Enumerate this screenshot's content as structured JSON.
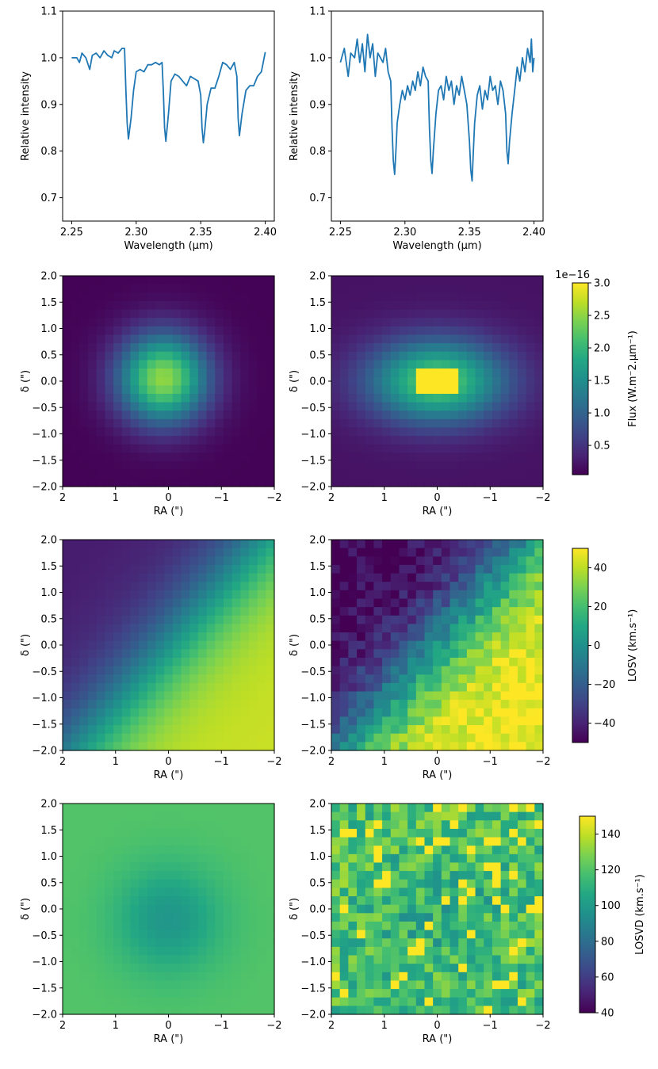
{
  "chart_data": [
    {
      "id": "spec_left",
      "type": "line",
      "panel": "r0c0",
      "xlabel": "Wavelength (μm)",
      "ylabel": "Relative intensity",
      "xlim": [
        2.243,
        2.407
      ],
      "ylim": [
        0.65,
        1.1
      ],
      "xticks": [
        2.25,
        2.3,
        2.35,
        2.4
      ],
      "xtick_labels": [
        "2.25",
        "2.30",
        "2.35",
        "2.40"
      ],
      "yticks": [
        0.7,
        0.8,
        0.9,
        1.0,
        1.1
      ],
      "ytick_labels": [
        "0.7",
        "0.8",
        "0.9",
        "1.0",
        "1.1"
      ],
      "color": "#1f77b4",
      "x": [
        2.25,
        2.254,
        2.256,
        2.258,
        2.261,
        2.264,
        2.266,
        2.269,
        2.272,
        2.275,
        2.278,
        2.281,
        2.283,
        2.286,
        2.289,
        2.291,
        2.292,
        2.293,
        2.294,
        2.296,
        2.298,
        2.3,
        2.303,
        2.306,
        2.309,
        2.312,
        2.315,
        2.318,
        2.32,
        2.321,
        2.322,
        2.323,
        2.325,
        2.327,
        2.33,
        2.333,
        2.336,
        2.339,
        2.342,
        2.345,
        2.348,
        2.35,
        2.351,
        2.352,
        2.353,
        2.355,
        2.358,
        2.361,
        2.364,
        2.367,
        2.37,
        2.373,
        2.376,
        2.378,
        2.379,
        2.38,
        2.382,
        2.385,
        2.388,
        2.391,
        2.394,
        2.397,
        2.4
      ],
      "y": [
        1.0,
        1.0,
        0.99,
        1.01,
        1.0,
        0.975,
        1.005,
        1.01,
        1.0,
        1.015,
        1.005,
        1.0,
        1.015,
        1.01,
        1.02,
        1.02,
        0.93,
        0.86,
        0.826,
        0.87,
        0.93,
        0.97,
        0.975,
        0.97,
        0.985,
        0.985,
        0.99,
        0.985,
        0.99,
        0.93,
        0.85,
        0.821,
        0.88,
        0.95,
        0.965,
        0.96,
        0.95,
        0.94,
        0.96,
        0.955,
        0.95,
        0.92,
        0.85,
        0.818,
        0.84,
        0.9,
        0.935,
        0.935,
        0.96,
        0.99,
        0.985,
        0.975,
        0.99,
        0.96,
        0.87,
        0.833,
        0.88,
        0.93,
        0.94,
        0.94,
        0.96,
        0.97,
        1.012
      ]
    },
    {
      "id": "spec_right",
      "type": "line",
      "panel": "r0c1",
      "xlabel": "Wavelength (μm)",
      "ylabel": "Relative intensity",
      "xlim": [
        2.243,
        2.407
      ],
      "ylim": [
        0.65,
        1.1
      ],
      "xticks": [
        2.25,
        2.3,
        2.35,
        2.4
      ],
      "xtick_labels": [
        "2.25",
        "2.30",
        "2.35",
        "2.40"
      ],
      "yticks": [
        0.7,
        0.8,
        0.9,
        1.0,
        1.1
      ],
      "ytick_labels": [
        "0.7",
        "0.8",
        "0.9",
        "1.0",
        "1.1"
      ],
      "color": "#1f77b4",
      "x": [
        2.25,
        2.253,
        2.256,
        2.258,
        2.261,
        2.263,
        2.265,
        2.267,
        2.269,
        2.271,
        2.273,
        2.275,
        2.277,
        2.279,
        2.281,
        2.283,
        2.285,
        2.287,
        2.289,
        2.29,
        2.291,
        2.292,
        2.293,
        2.294,
        2.296,
        2.298,
        2.3,
        2.302,
        2.304,
        2.306,
        2.308,
        2.31,
        2.312,
        2.314,
        2.316,
        2.318,
        2.319,
        2.32,
        2.321,
        2.322,
        2.324,
        2.326,
        2.328,
        2.33,
        2.332,
        2.334,
        2.336,
        2.338,
        2.34,
        2.342,
        2.344,
        2.346,
        2.348,
        2.35,
        2.351,
        2.352,
        2.353,
        2.354,
        2.356,
        2.358,
        2.36,
        2.362,
        2.364,
        2.366,
        2.368,
        2.37,
        2.372,
        2.374,
        2.376,
        2.378,
        2.379,
        2.38,
        2.381,
        2.383,
        2.385,
        2.387,
        2.389,
        2.391,
        2.393,
        2.395,
        2.397,
        2.398,
        2.399,
        2.4
      ],
      "y": [
        0.99,
        1.02,
        0.96,
        1.01,
        1.0,
        1.04,
        0.99,
        1.03,
        0.97,
        1.05,
        1.0,
        1.03,
        0.96,
        1.01,
        1.0,
        0.99,
        1.02,
        0.97,
        0.95,
        0.85,
        0.78,
        0.75,
        0.8,
        0.86,
        0.9,
        0.93,
        0.91,
        0.94,
        0.92,
        0.95,
        0.93,
        0.97,
        0.94,
        0.98,
        0.96,
        0.95,
        0.85,
        0.78,
        0.752,
        0.8,
        0.88,
        0.93,
        0.94,
        0.91,
        0.96,
        0.93,
        0.95,
        0.9,
        0.94,
        0.92,
        0.96,
        0.93,
        0.9,
        0.82,
        0.76,
        0.736,
        0.8,
        0.86,
        0.92,
        0.94,
        0.89,
        0.93,
        0.91,
        0.96,
        0.93,
        0.94,
        0.9,
        0.95,
        0.93,
        0.88,
        0.8,
        0.773,
        0.82,
        0.88,
        0.93,
        0.98,
        0.95,
        1.0,
        0.97,
        1.02,
        0.99,
        1.04,
        0.97,
        1.0
      ]
    },
    {
      "id": "flux_model",
      "type": "heatmap",
      "panel": "r1c0",
      "pattern": "gauss",
      "grid": 25,
      "xlabel": "RA (\")",
      "ylabel": "δ (\")",
      "xlim": [
        2,
        -2
      ],
      "ylim": [
        -2,
        2
      ],
      "center": [
        0.1,
        0.05
      ],
      "sigma": 0.6,
      "peak": 2.45,
      "floor": 0.07,
      "vmin": 0.05,
      "vmax": 3.0
    },
    {
      "id": "flux_obs",
      "type": "heatmap",
      "panel": "r1c1",
      "pattern": "gauss_box",
      "grid": 25,
      "xlabel": "RA (\")",
      "ylabel": "δ (\")",
      "xlim": [
        2,
        -2
      ],
      "ylim": [
        -2,
        2
      ],
      "center": [
        0.0,
        0.0
      ],
      "sigma": 0.55,
      "peak": 3.0,
      "floor": 0.2,
      "vmin": 0.05,
      "vmax": 3.0
    },
    {
      "id": "losv_model",
      "type": "heatmap",
      "panel": "r2c0",
      "pattern": "velocity",
      "grid": 25,
      "xlabel": "RA (\")",
      "ylabel": "δ (\")",
      "xlim": [
        2,
        -2
      ],
      "ylim": [
        -2,
        2
      ],
      "amplitude": 42,
      "noise": 0,
      "vmin": -50,
      "vmax": 50
    },
    {
      "id": "losv_obs",
      "type": "heatmap",
      "panel": "r2c1",
      "pattern": "velocity",
      "grid": 25,
      "xlabel": "RA (\")",
      "ylabel": "δ (\")",
      "xlim": [
        2,
        -2
      ],
      "ylim": [
        -2,
        2
      ],
      "amplitude": 50,
      "noise": 9,
      "seed": 7,
      "vmin": -50,
      "vmax": 50
    },
    {
      "id": "losvd_model",
      "type": "heatmap",
      "panel": "r3c0",
      "pattern": "dispersion",
      "grid": 25,
      "xlabel": "RA (\")",
      "ylabel": "δ (\")",
      "xlim": [
        2,
        -2
      ],
      "ylim": [
        -2,
        2
      ],
      "outer": 120,
      "dip": 22,
      "sigma": 0.7,
      "noise": 0,
      "vmin": 40,
      "vmax": 150
    },
    {
      "id": "losvd_obs",
      "type": "heatmap",
      "panel": "r3c1",
      "pattern": "dispersion",
      "grid": 25,
      "xlabel": "RA (\")",
      "ylabel": "δ (\")",
      "xlim": [
        2,
        -2
      ],
      "ylim": [
        -2,
        2
      ],
      "outer": 118,
      "dip": 10,
      "sigma": 0.8,
      "noise": 18,
      "seed": 13,
      "vmin": 40,
      "vmax": 150
    },
    {
      "id": "cbar_flux",
      "type": "colorbar",
      "label": "Flux (W.m⁻2.μm⁻¹)",
      "offset": "1e−16",
      "vmin": 0.05,
      "vmax": 3.0,
      "ticks": [
        0.5,
        1.0,
        1.5,
        2.0,
        2.5,
        3.0
      ],
      "tick_labels": [
        "0.5",
        "1.0",
        "1.5",
        "2.0",
        "2.5",
        "3.0"
      ]
    },
    {
      "id": "cbar_losv",
      "type": "colorbar",
      "label": "LOSV (km.s⁻¹)",
      "vmin": -50,
      "vmax": 50,
      "ticks": [
        -40,
        -20,
        0,
        20,
        40
      ],
      "tick_labels": [
        "−40",
        "−20",
        "0",
        "20",
        "40"
      ]
    },
    {
      "id": "cbar_losvd",
      "type": "colorbar",
      "label": "LOSVD (km.s⁻¹)",
      "vmin": 40,
      "vmax": 150,
      "ticks": [
        40,
        60,
        80,
        100,
        120,
        140
      ],
      "tick_labels": [
        "40",
        "60",
        "80",
        "100",
        "120",
        "140"
      ]
    }
  ],
  "map_axes": {
    "xticks": [
      2,
      1,
      0,
      -1,
      -2
    ],
    "xtick_labels": [
      "2",
      "1",
      "0",
      "−1",
      "−2"
    ],
    "yticks": [
      -2.0,
      -1.5,
      -1.0,
      -0.5,
      0.0,
      0.5,
      1.0,
      1.5,
      2.0
    ],
    "ytick_labels": [
      "−2.0",
      "−1.5",
      "−1.0",
      "−0.5",
      "0.0",
      "0.5",
      "1.0",
      "1.5",
      "2.0"
    ]
  }
}
